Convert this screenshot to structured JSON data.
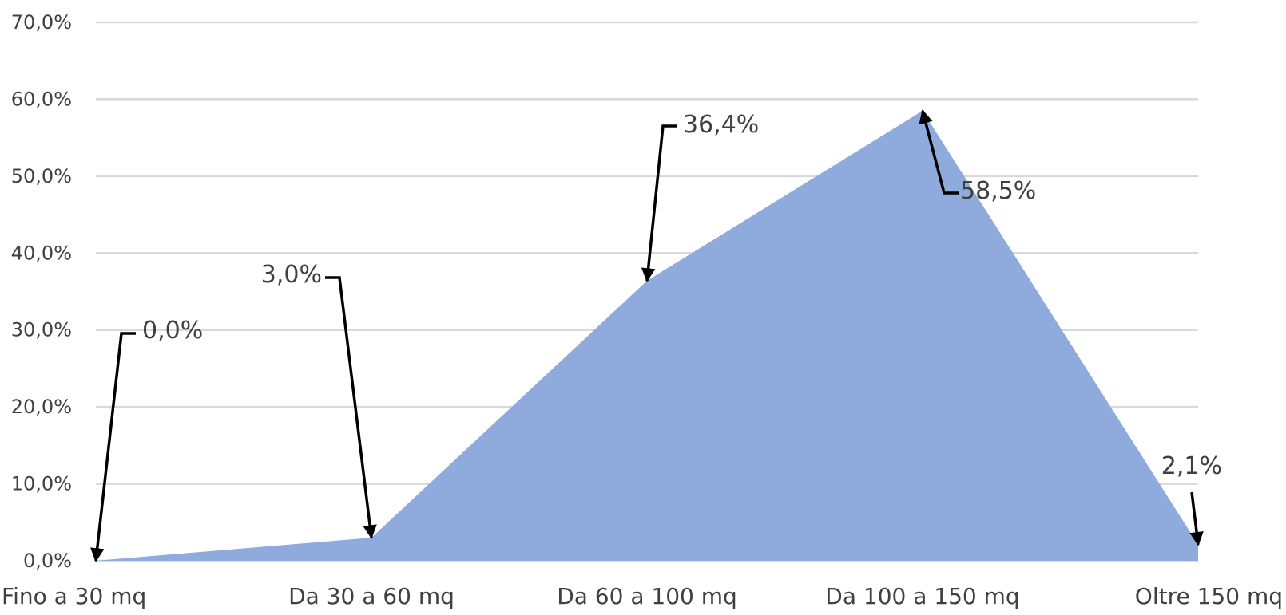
{
  "chart_data": {
    "type": "area",
    "categories": [
      "Fino a 30 mq",
      "Da 30 a 60 mq",
      "Da 60 a 100 mq",
      "Da 100 a 150 mq",
      "Oltre 150 mq"
    ],
    "values": [
      0.0,
      3.0,
      36.4,
      58.5,
      2.1
    ],
    "data_labels": [
      "0,0%",
      "3,0%",
      "36,4%",
      "58,5%",
      "2,1%"
    ],
    "ylim": [
      0,
      70
    ],
    "y_ticks": [
      0,
      10,
      20,
      30,
      40,
      50,
      60,
      70
    ],
    "y_tick_labels": [
      "0,0%",
      "10,0%",
      "20,0%",
      "30,0%",
      "40,0%",
      "50,0%",
      "60,0%",
      "70,0%"
    ],
    "grid": true,
    "legend": "none",
    "colors": {
      "area": "#8faadc",
      "gridline": "#d9d9d9",
      "text": "#404040",
      "leader": "#000000"
    }
  }
}
